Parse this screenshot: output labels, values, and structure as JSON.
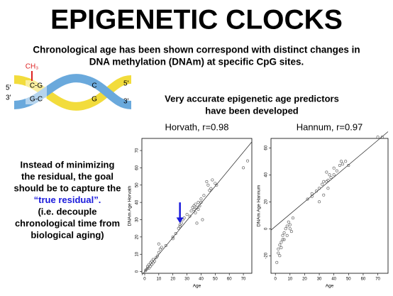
{
  "title": "EPIGENETIC CLOCKS",
  "subtitle": [
    "Chronological age has been shown correspond with distinct changes in",
    "DNA methylation (DNAm) at specific CpG sites."
  ],
  "dna": {
    "methyl": "CH₃",
    "left_ends": [
      "5'",
      "3'"
    ],
    "right_ends": [
      "5'",
      "3'"
    ],
    "pairs": [
      "C-G",
      "G-C"
    ],
    "bases": [
      "C",
      "G"
    ]
  },
  "predictors_heading": [
    "Very accurate epigenetic age predictors",
    "have been developed"
  ],
  "left_text": [
    "Instead of minimizing",
    "the residual, the goal",
    "should be to capture the",
    "“true residual”.",
    "(i.e. decouple",
    "chronological time from",
    "biological aging)"
  ],
  "chart_data": [
    {
      "type": "scatter",
      "title": "Horvath, r=0.98",
      "xlabel": "Age",
      "ylabel": "DNAm Age Horvath",
      "xlim": [
        -2,
        76
      ],
      "ylim": [
        -1,
        77
      ],
      "xticks": [
        0,
        10,
        20,
        30,
        40,
        50,
        60,
        70
      ],
      "yticks": [
        0,
        10,
        20,
        30,
        40,
        50,
        60,
        70
      ],
      "x": [
        0.5,
        1,
        2,
        2,
        3,
        3,
        4,
        4,
        5,
        5,
        6,
        6,
        7,
        8,
        9,
        10,
        11,
        12,
        10,
        15,
        20,
        20,
        22,
        24,
        25,
        25,
        26,
        27,
        28,
        30,
        32,
        33,
        34,
        35,
        35,
        36,
        36,
        37,
        37,
        38,
        38,
        39,
        40,
        40,
        41,
        42,
        44,
        45,
        46,
        47,
        48,
        50,
        51,
        70,
        73
      ],
      "y": [
        0.5,
        1,
        2,
        3,
        2,
        4,
        3,
        5,
        4,
        6,
        5,
        7,
        6,
        8,
        9,
        11,
        13,
        14,
        16,
        15,
        19,
        20,
        22,
        25,
        26,
        27,
        28,
        30,
        31,
        33,
        32,
        35,
        37,
        36,
        38,
        34,
        39,
        37,
        28,
        36,
        40,
        38,
        40,
        42,
        30,
        44,
        52,
        50,
        47,
        48,
        53,
        51,
        50,
        60,
        64
      ],
      "fit": {
        "x": [
          -2,
          76
        ],
        "y": [
          -2,
          75
        ]
      },
      "arrow": {
        "x": 25,
        "y": [
          40,
          28
        ],
        "color": "#1a1adc"
      }
    },
    {
      "type": "scatter",
      "title": "Hannum, r=0.97",
      "xlabel": "Age",
      "ylabel": "DNAm Age Hannum",
      "xlim": [
        -3,
        77
      ],
      "ylim": [
        -33,
        67
      ],
      "xticks": [
        0,
        10,
        20,
        30,
        40,
        50,
        60,
        70
      ],
      "yticks": [
        -20,
        0,
        20,
        40,
        60
      ],
      "x": [
        1,
        2,
        2,
        3,
        3,
        4,
        4,
        5,
        5,
        6,
        6,
        7,
        8,
        8,
        9,
        10,
        10,
        11,
        12,
        22,
        25,
        25,
        28,
        30,
        30,
        32,
        33,
        33,
        35,
        35,
        36,
        36,
        37,
        38,
        40,
        40,
        42,
        44,
        45,
        46,
        48,
        50,
        70,
        73
      ],
      "y": [
        -25,
        -18,
        -15,
        -12,
        -20,
        -10,
        -14,
        -8,
        -5,
        -3,
        -8,
        0,
        2,
        -5,
        5,
        3,
        0,
        -2,
        8,
        22,
        26,
        24,
        28,
        30,
        20,
        33,
        35,
        25,
        35,
        42,
        36,
        30,
        40,
        38,
        40,
        45,
        43,
        47,
        50,
        48,
        50,
        47,
        68,
        68
      ],
      "fit": {
        "x": [
          -3,
          77
        ],
        "y": [
          -1,
          72
        ]
      }
    }
  ]
}
